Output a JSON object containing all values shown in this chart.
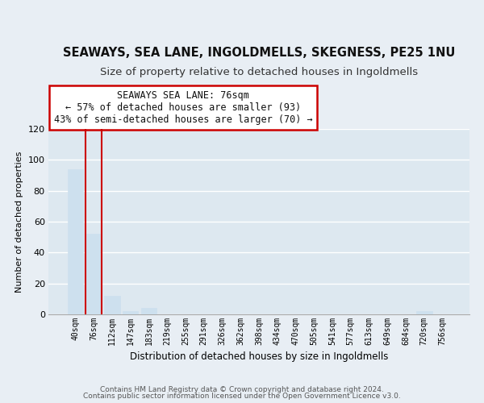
{
  "title": "SEAWAYS, SEA LANE, INGOLDMELLS, SKEGNESS, PE25 1NU",
  "subtitle": "Size of property relative to detached houses in Ingoldmells",
  "xlabel": "Distribution of detached houses by size in Ingoldmells",
  "ylabel": "Number of detached properties",
  "footnote1": "Contains HM Land Registry data © Crown copyright and database right 2024.",
  "footnote2": "Contains public sector information licensed under the Open Government Licence v3.0.",
  "bar_labels": [
    "40sqm",
    "76sqm",
    "112sqm",
    "147sqm",
    "183sqm",
    "219sqm",
    "255sqm",
    "291sqm",
    "326sqm",
    "362sqm",
    "398sqm",
    "434sqm",
    "470sqm",
    "505sqm",
    "541sqm",
    "577sqm",
    "613sqm",
    "649sqm",
    "684sqm",
    "720sqm",
    "756sqm"
  ],
  "bar_values": [
    94,
    52,
    12,
    2,
    4,
    0,
    0,
    0,
    0,
    0,
    0,
    0,
    0,
    0,
    0,
    0,
    0,
    0,
    0,
    2,
    0
  ],
  "highlight_index": 1,
  "bar_color": "#cde0ee",
  "highlight_edge_color": "#cc0000",
  "ylim": [
    0,
    120
  ],
  "yticks": [
    0,
    20,
    40,
    60,
    80,
    100,
    120
  ],
  "annotation_title": "SEAWAYS SEA LANE: 76sqm",
  "annotation_line1": "← 57% of detached houses are smaller (93)",
  "annotation_line2": "43% of semi-detached houses are larger (70) →",
  "annotation_box_color": "#ffffff",
  "annotation_box_edge": "#cc0000",
  "background_color": "#e8eef4",
  "plot_bg_color": "#dde8f0",
  "grid_color": "#ffffff",
  "title_fontsize": 10.5,
  "subtitle_fontsize": 9.5,
  "footnote_fontsize": 6.5
}
